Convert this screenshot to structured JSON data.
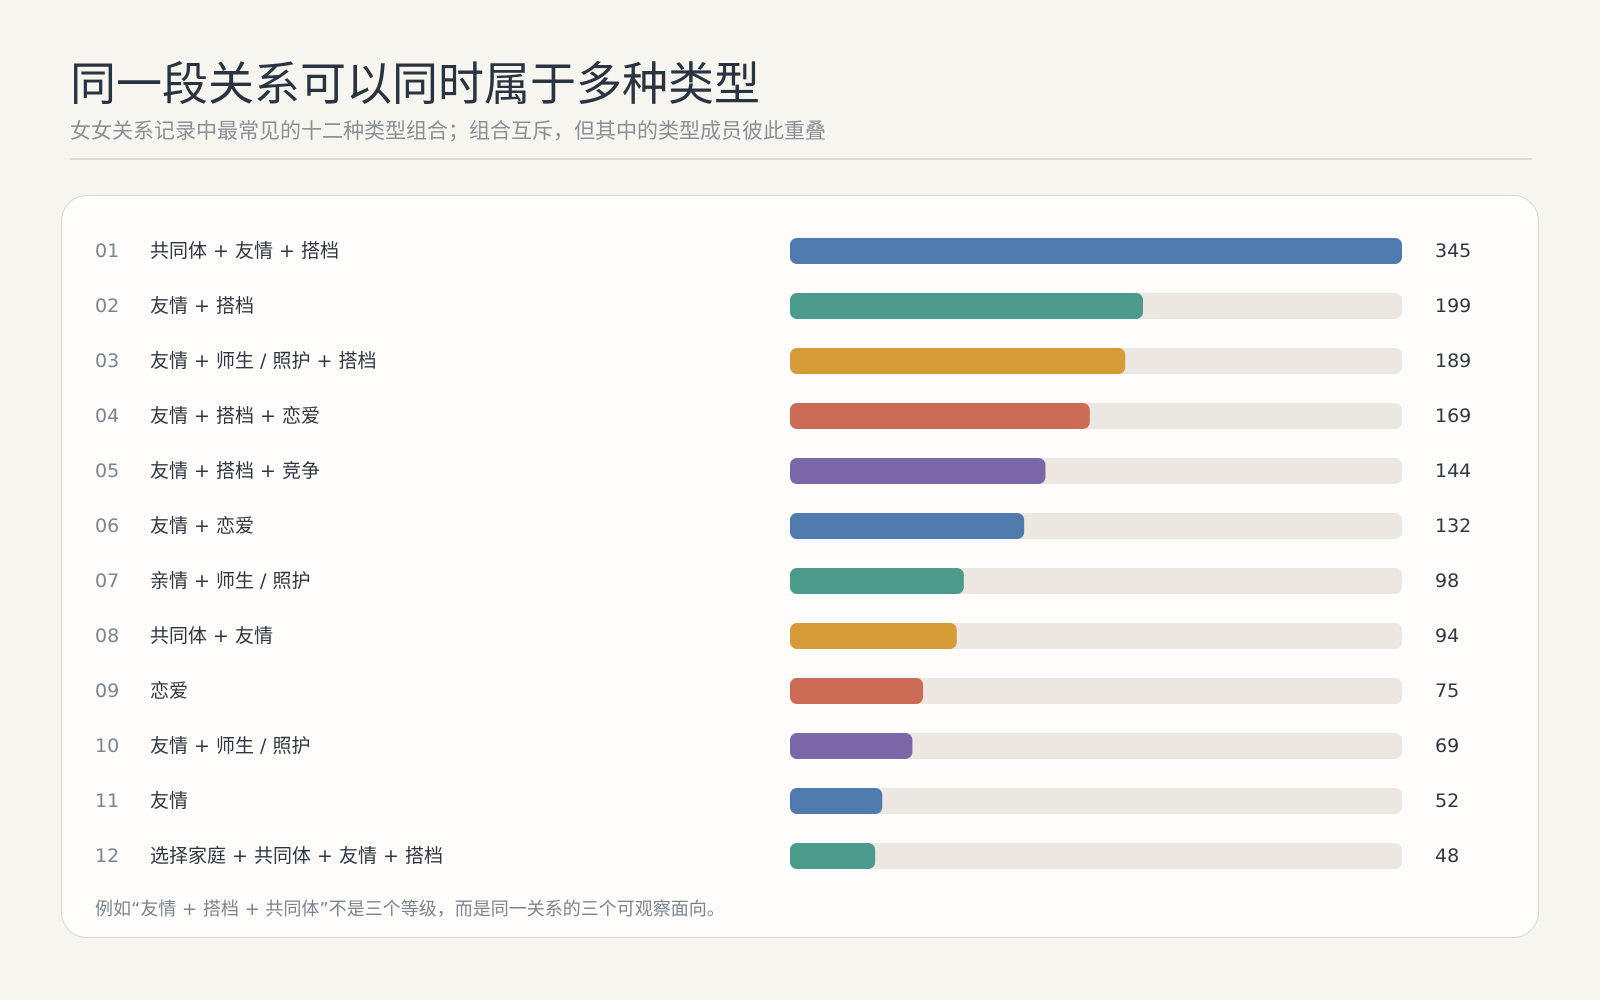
{
  "title": "同一段关系可以同时属于多种类型",
  "subtitle": "女女关系记录中最常见的十二种类型组合；组合互斥，但其中的类型成员彼此重叠",
  "footnote": "例如“友情 + 搭档 + 共同体”不是三个等级，而是同一关系的三个可观察面向。",
  "colors": {
    "background": "#f7f5f0",
    "card": "#fefdfb",
    "track": "#ece7e0",
    "palette": [
      "#4f7aad",
      "#4b9b8c",
      "#d49b36",
      "#cc6b55",
      "#7a67a8"
    ]
  },
  "chart_data": {
    "type": "bar",
    "orientation": "horizontal",
    "ranks": [
      "01",
      "02",
      "03",
      "04",
      "05",
      "06",
      "07",
      "08",
      "09",
      "10",
      "11",
      "12"
    ],
    "categories": [
      "共同体 + 友情 + 搭档",
      "友情 + 搭档",
      "友情 + 师生 / 照护 + 搭档",
      "友情 + 搭档 + 恋爱",
      "友情 + 搭档 + 竞争",
      "友情 + 恋爱",
      "亲情 + 师生 / 照护",
      "共同体 + 友情",
      "恋爱",
      "友情 + 师生 / 照护",
      "友情",
      "选择家庭 + 共同体 + 友情 + 搭档"
    ],
    "values": [
      345,
      199,
      189,
      169,
      144,
      132,
      98,
      94,
      75,
      69,
      52,
      48
    ],
    "xlim": [
      0,
      345
    ],
    "grid": false,
    "legend": "none"
  }
}
